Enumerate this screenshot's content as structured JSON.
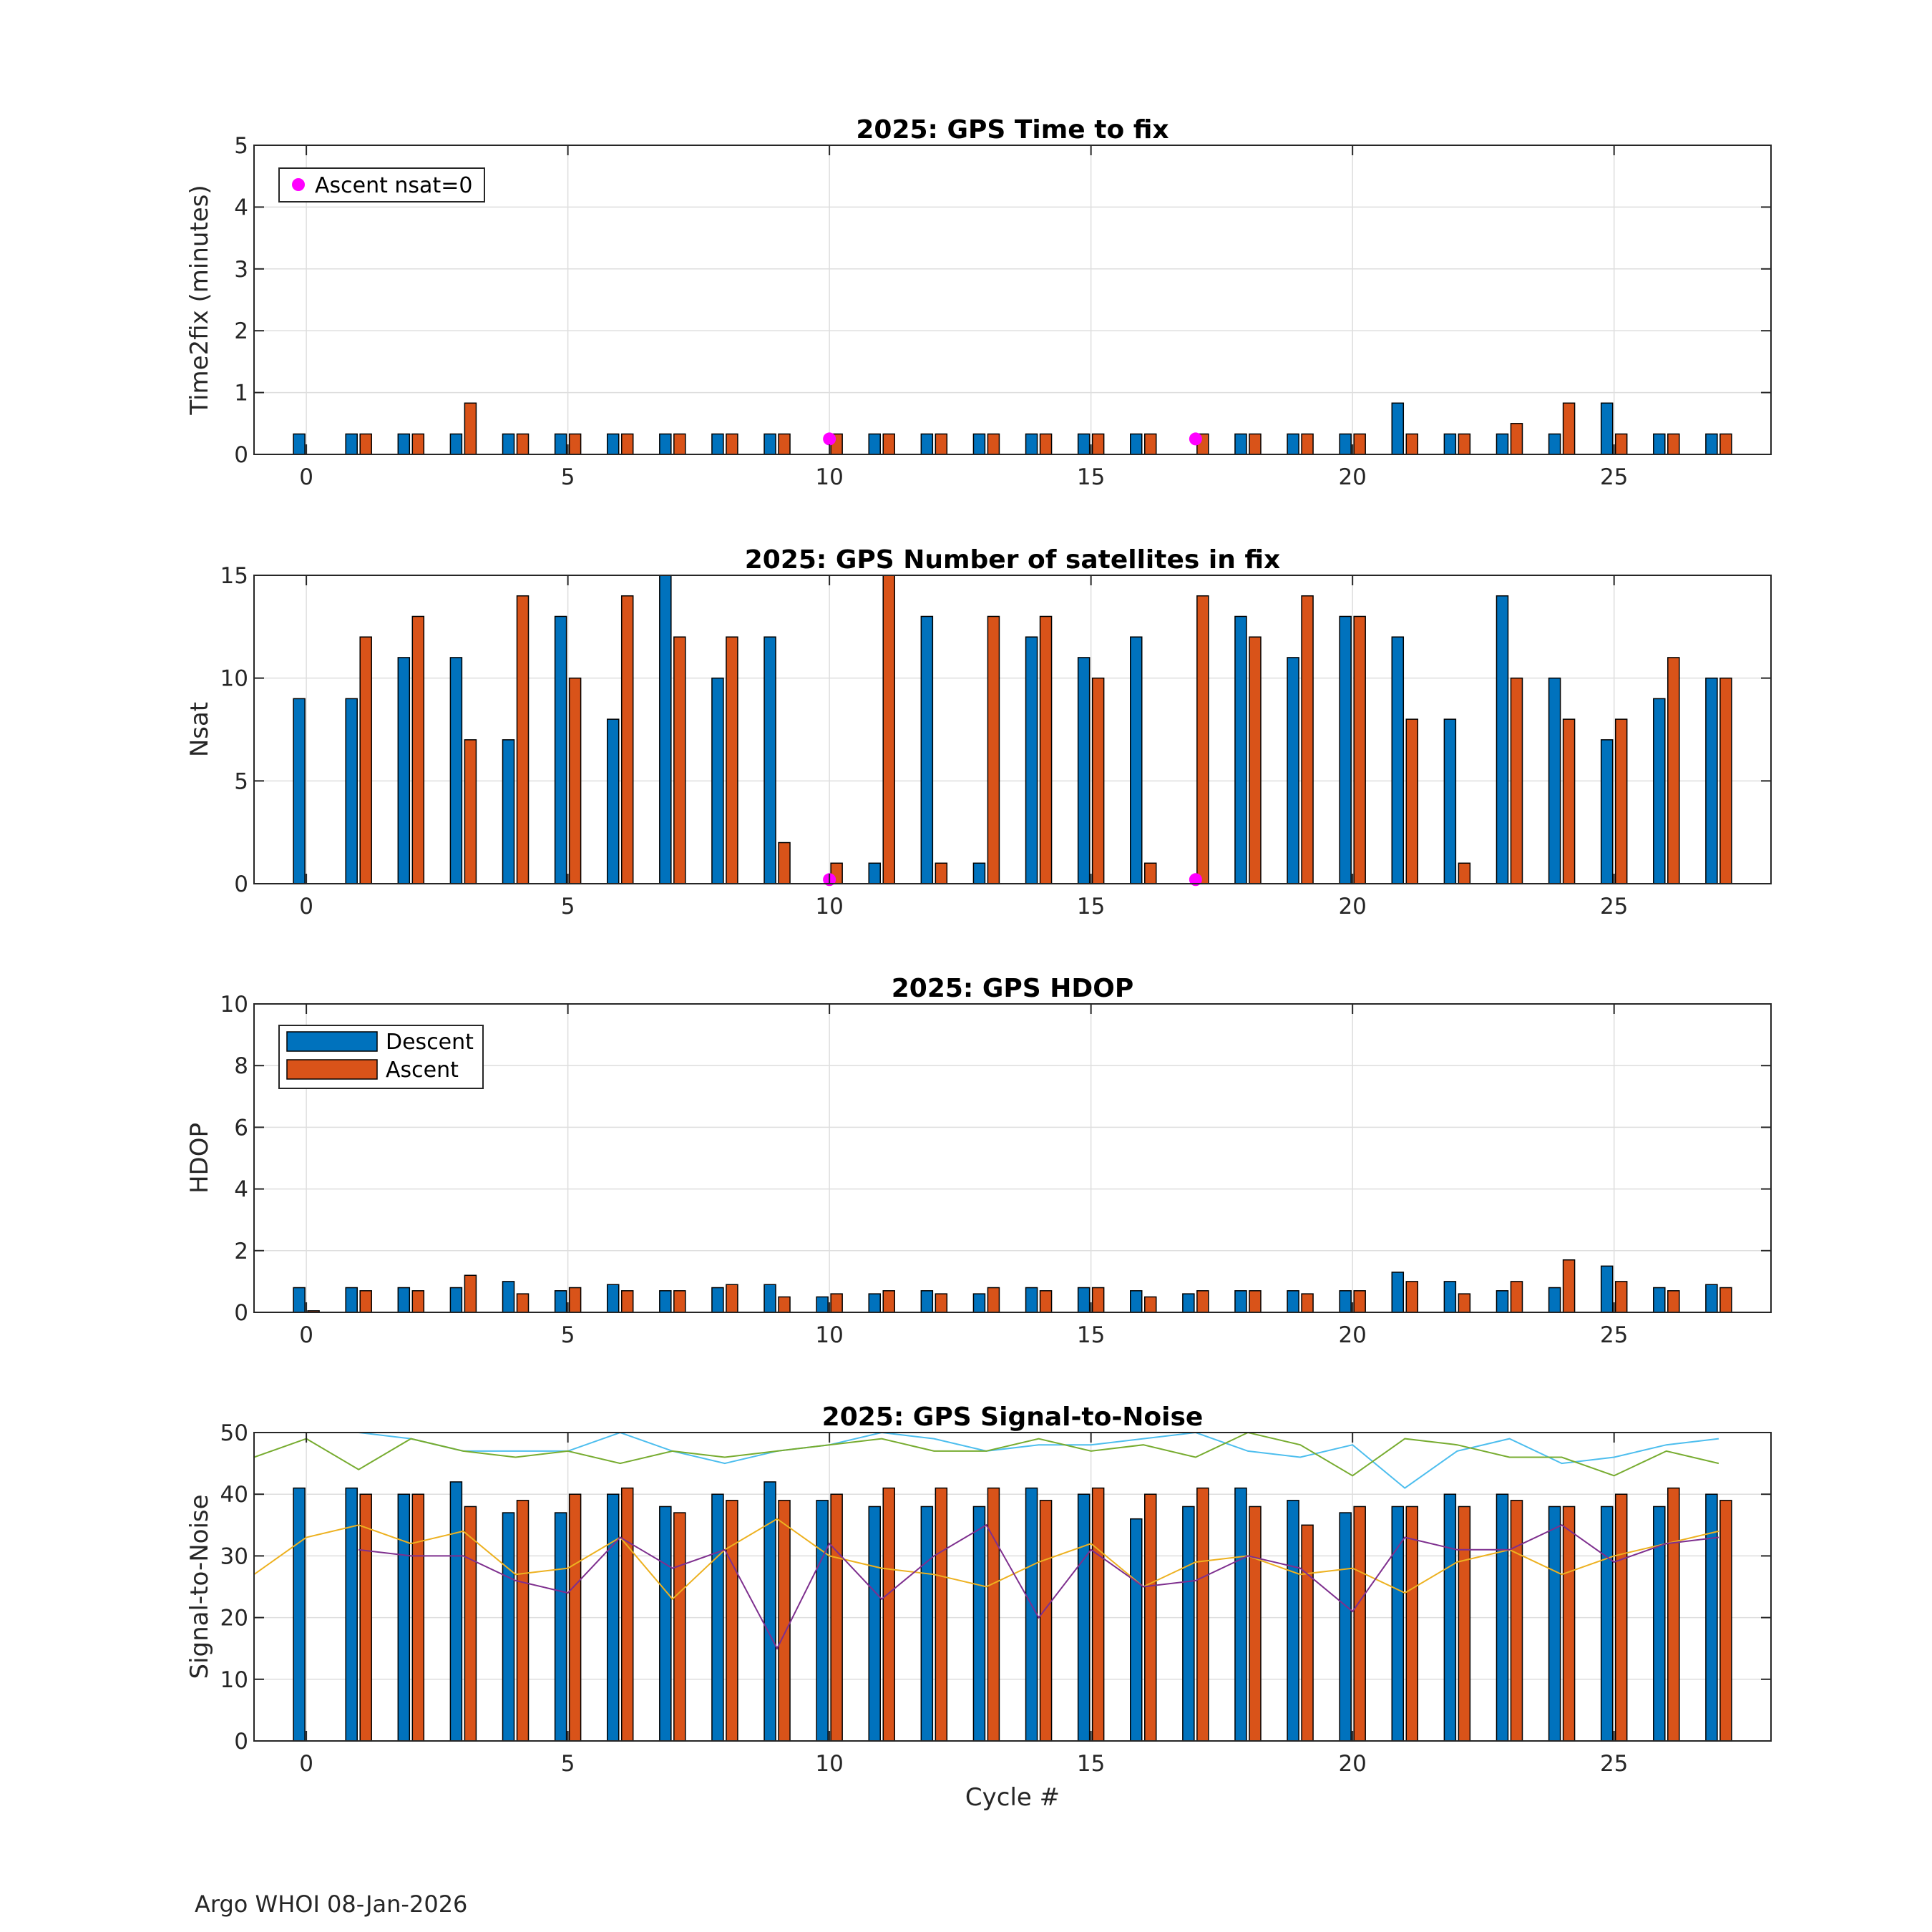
{
  "footer": "Argo WHOI 08-Jan-2026",
  "colors": {
    "descent": "#0072BD",
    "ascent": "#D95319",
    "nsat0": "#FF00FF",
    "snr": [
      "#4DBEEE",
      "#77AC30",
      "#EDB120",
      "#7E2F8E"
    ]
  },
  "chart_data": [
    {
      "type": "bar",
      "title": "2025: GPS Time to fix",
      "xlabel": "",
      "ylabel": "Time2fix (minutes)",
      "xlim": [
        -1,
        28
      ],
      "ylim": [
        0,
        5
      ],
      "xticks": [
        0,
        5,
        10,
        15,
        20,
        25
      ],
      "yticks": [
        0,
        1,
        2,
        3,
        4,
        5
      ],
      "grid": true,
      "x": [
        0,
        1,
        2,
        3,
        4,
        5,
        6,
        7,
        8,
        9,
        10,
        11,
        12,
        13,
        14,
        15,
        16,
        17,
        18,
        19,
        20,
        21,
        22,
        23,
        24,
        25,
        26,
        27
      ],
      "series": [
        {
          "key": "descent",
          "values": [
            0.33,
            0.33,
            0.33,
            0.33,
            0.33,
            0.33,
            0.33,
            0.33,
            0.33,
            0.33,
            0,
            0.33,
            0.33,
            0.33,
            0.33,
            0.33,
            0.33,
            0,
            0.33,
            0.33,
            0.33,
            0.83,
            0.33,
            0.33,
            0.33,
            0.83,
            0.33,
            0.33
          ]
        },
        {
          "key": "ascent",
          "values": [
            0,
            0.33,
            0.33,
            0.83,
            0.33,
            0.33,
            0.33,
            0.33,
            0.33,
            0.33,
            0.33,
            0.33,
            0.33,
            0.33,
            0.33,
            0.33,
            0.33,
            0.33,
            0.33,
            0.33,
            0.33,
            0.33,
            0.33,
            0.5,
            0.83,
            0.33,
            0.33,
            0.33
          ]
        }
      ],
      "markers": {
        "name": "Ascent nsat=0",
        "points": [
          [
            10,
            0.25
          ],
          [
            17,
            0.25
          ]
        ]
      },
      "legend": {
        "position": "top-left",
        "entries": [
          "Ascent nsat=0"
        ]
      }
    },
    {
      "type": "bar",
      "title": "2025: GPS Number of satellites in fix",
      "xlabel": "",
      "ylabel": "Nsat",
      "xlim": [
        -1,
        28
      ],
      "ylim": [
        0,
        15
      ],
      "xticks": [
        0,
        5,
        10,
        15,
        20,
        25
      ],
      "yticks": [
        0,
        5,
        10,
        15
      ],
      "grid": true,
      "x": [
        0,
        1,
        2,
        3,
        4,
        5,
        6,
        7,
        8,
        9,
        10,
        11,
        12,
        13,
        14,
        15,
        16,
        17,
        18,
        19,
        20,
        21,
        22,
        23,
        24,
        25,
        26,
        27
      ],
      "series": [
        {
          "key": "descent",
          "values": [
            9,
            9,
            11,
            11,
            7,
            13,
            8,
            15,
            10,
            12,
            0,
            1,
            13,
            1,
            12,
            11,
            12,
            0,
            13,
            11,
            13,
            12,
            8,
            14,
            10,
            7,
            9,
            10
          ]
        },
        {
          "key": "ascent",
          "values": [
            0,
            12,
            13,
            7,
            14,
            10,
            14,
            12,
            12,
            2,
            1,
            15,
            1,
            13,
            13,
            10,
            1,
            14,
            12,
            14,
            13,
            8,
            1,
            10,
            8,
            8,
            11,
            10
          ]
        }
      ],
      "markers": {
        "points": [
          [
            10,
            0.2
          ],
          [
            17,
            0.2
          ]
        ]
      }
    },
    {
      "type": "bar",
      "title": "2025: GPS HDOP",
      "xlabel": "",
      "ylabel": "HDOP",
      "xlim": [
        -1,
        28
      ],
      "ylim": [
        0,
        10
      ],
      "xticks": [
        0,
        5,
        10,
        15,
        20,
        25
      ],
      "yticks": [
        0,
        2,
        4,
        6,
        8,
        10
      ],
      "grid": true,
      "x": [
        0,
        1,
        2,
        3,
        4,
        5,
        6,
        7,
        8,
        9,
        10,
        11,
        12,
        13,
        14,
        15,
        16,
        17,
        18,
        19,
        20,
        21,
        22,
        23,
        24,
        25,
        26,
        27
      ],
      "series": [
        {
          "key": "descent",
          "name": "Descent",
          "values": [
            0.8,
            0.8,
            0.8,
            0.8,
            1.0,
            0.7,
            0.9,
            0.7,
            0.8,
            0.9,
            0.5,
            0.6,
            0.7,
            0.6,
            0.8,
            0.8,
            0.7,
            0.6,
            0.7,
            0.7,
            0.7,
            1.3,
            1.0,
            0.7,
            0.8,
            1.5,
            0.8,
            0.9
          ]
        },
        {
          "key": "ascent",
          "name": "Ascent",
          "values": [
            0.05,
            0.7,
            0.7,
            1.2,
            0.6,
            0.8,
            0.7,
            0.7,
            0.9,
            0.5,
            0.6,
            0.7,
            0.6,
            0.8,
            0.7,
            0.8,
            0.5,
            0.7,
            0.7,
            0.6,
            0.7,
            1.0,
            0.6,
            1.0,
            1.7,
            1.0,
            0.7,
            0.8
          ]
        }
      ],
      "legend": {
        "position": "top-left",
        "entries": [
          "Descent",
          "Ascent"
        ]
      }
    },
    {
      "type": "bar",
      "title": "2025: GPS Signal-to-Noise",
      "xlabel": "Cycle #",
      "ylabel": "Signal-to-Noise",
      "xlim": [
        -1,
        28
      ],
      "ylim": [
        0,
        50
      ],
      "xticks": [
        0,
        5,
        10,
        15,
        20,
        25
      ],
      "yticks": [
        0,
        10,
        20,
        30,
        40,
        50
      ],
      "grid": true,
      "x": [
        0,
        1,
        2,
        3,
        4,
        5,
        6,
        7,
        8,
        9,
        10,
        11,
        12,
        13,
        14,
        15,
        16,
        17,
        18,
        19,
        20,
        21,
        22,
        23,
        24,
        25,
        26,
        27
      ],
      "series": [
        {
          "key": "descent",
          "values": [
            41,
            41,
            40,
            42,
            37,
            37,
            40,
            38,
            40,
            42,
            39,
            38,
            38,
            38,
            41,
            40,
            36,
            38,
            41,
            39,
            37,
            38,
            40,
            40,
            38,
            38,
            38,
            40
          ]
        },
        {
          "key": "ascent",
          "values": [
            0,
            40,
            40,
            38,
            39,
            40,
            41,
            37,
            39,
            39,
            40,
            41,
            41,
            41,
            39,
            41,
            40,
            41,
            38,
            35,
            38,
            38,
            38,
            39,
            38,
            40,
            41,
            39
          ]
        }
      ],
      "lines": [
        {
          "x": [
            1,
            2,
            3,
            4,
            5,
            6,
            7,
            8,
            9,
            10,
            11,
            12,
            13,
            14,
            15,
            16,
            17,
            18,
            19,
            20,
            21,
            22,
            23,
            24,
            25,
            26,
            27
          ],
          "values": [
            50,
            49,
            47,
            47,
            47,
            50,
            47,
            45,
            47,
            48,
            50,
            49,
            47,
            48,
            48,
            49,
            50,
            47,
            46,
            48,
            41,
            47,
            49,
            45,
            46,
            48,
            49
          ]
        },
        {
          "x": [
            -1,
            0,
            1,
            2,
            3,
            4,
            5,
            6,
            7,
            8,
            9,
            10,
            11,
            12,
            13,
            14,
            15,
            16,
            17,
            18,
            19,
            20,
            21,
            22,
            23,
            24,
            25,
            26,
            27
          ],
          "values": [
            46,
            49,
            44,
            49,
            47,
            46,
            47,
            45,
            47,
            46,
            47,
            48,
            49,
            47,
            47,
            49,
            47,
            48,
            46,
            50,
            48,
            43,
            49,
            48,
            46,
            46,
            43,
            47,
            45
          ]
        },
        {
          "x": [
            -1,
            0,
            1,
            2,
            3,
            4,
            5,
            6,
            7,
            8,
            9,
            10,
            11,
            12,
            13,
            14,
            15,
            16,
            17,
            18,
            19,
            20,
            21,
            22,
            23,
            24,
            25,
            26,
            27
          ],
          "values": [
            27,
            33,
            35,
            32,
            34,
            27,
            28,
            33,
            23,
            31,
            36,
            30,
            28,
            27,
            25,
            29,
            32,
            25,
            29,
            30,
            27,
            28,
            24,
            29,
            31,
            27,
            30,
            32,
            34
          ]
        },
        {
          "x": [
            1,
            2,
            3,
            4,
            5,
            6,
            7,
            8,
            9,
            10,
            11,
            12,
            13,
            14,
            15,
            16,
            17,
            18,
            19,
            20,
            21,
            22,
            23,
            24,
            25,
            26,
            27
          ],
          "values": [
            31,
            30,
            30,
            26,
            24,
            33,
            28,
            31,
            15,
            32,
            23,
            30,
            35,
            20,
            31,
            25,
            26,
            30,
            28,
            21,
            33,
            31,
            31,
            35,
            29,
            32,
            33
          ]
        }
      ]
    }
  ]
}
